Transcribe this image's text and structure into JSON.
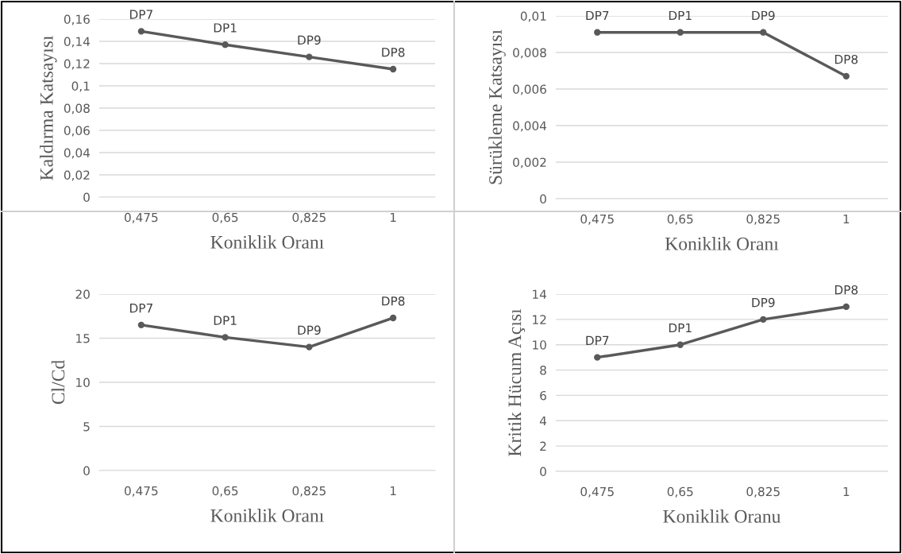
{
  "chart_data": [
    {
      "type": "line",
      "categories": [
        "0,475",
        "0,65",
        "0,825",
        "1"
      ],
      "xlabel": "Koniklik Oranı",
      "ylabel": "Kaldırma Katsayısı",
      "series": [
        {
          "color": "#595959",
          "values": [
            0.149,
            0.137,
            0.126,
            0.115
          ]
        }
      ],
      "ylim": [
        0,
        0.16
      ],
      "yticks": [
        0,
        {
          "value": 0.02,
          "label": "0,02"
        },
        {
          "value": 0.04,
          "label": "0,04"
        },
        {
          "value": 0.06,
          "label": "0,06"
        },
        {
          "value": 0.08,
          "label": "0,08"
        },
        {
          "value": 0.1,
          "label": "0,1"
        },
        {
          "value": 0.12,
          "label": "0,12"
        },
        {
          "value": 0.14,
          "label": "0,14"
        },
        {
          "value": 0.16,
          "label": "0,16"
        }
      ],
      "grid": "y",
      "marker": "circle",
      "line_style": "solid",
      "legend": false,
      "annotations": [
        {
          "text": "DP7",
          "x": "0,475",
          "y": 0.149
        },
        {
          "text": "DP1",
          "x": "0,65",
          "y": 0.137
        },
        {
          "text": "DP9",
          "x": "0,825",
          "y": 0.126
        },
        {
          "text": "DP8",
          "x": "1",
          "y": 0.115
        }
      ]
    },
    {
      "type": "line",
      "categories": [
        "0,475",
        "0,65",
        "0,825",
        "1"
      ],
      "xlabel": "Koniklik Oranı",
      "ylabel": "Sürükleme Katsayısı",
      "series": [
        {
          "color": "#595959",
          "values": [
            0.0091,
            0.0091,
            0.0091,
            0.0067
          ]
        }
      ],
      "ylim": [
        0,
        0.01
      ],
      "yticks": [
        0,
        {
          "value": 0.002,
          "label": "0,002"
        },
        {
          "value": 0.004,
          "label": "0,004"
        },
        {
          "value": 0.006,
          "label": "0,006"
        },
        {
          "value": 0.008,
          "label": "0,008"
        },
        {
          "value": 0.01,
          "label": "0,01"
        }
      ],
      "grid": "y",
      "marker": "circle",
      "line_style": "solid",
      "legend": false,
      "annotations": [
        {
          "text": "DP7",
          "x": "0,475",
          "y": 0.0091
        },
        {
          "text": "DP1",
          "x": "0,65",
          "y": 0.0091
        },
        {
          "text": "DP9",
          "x": "0,825",
          "y": 0.0091
        },
        {
          "text": "DP8",
          "x": "1",
          "y": 0.0067
        }
      ]
    },
    {
      "type": "line",
      "categories": [
        "0,475",
        "0,65",
        "0,825",
        "1"
      ],
      "xlabel": "Koniklik Oranı",
      "ylabel": "Cl/Cd",
      "series": [
        {
          "color": "#595959",
          "values": [
            16.5,
            15.1,
            14.0,
            17.3
          ]
        }
      ],
      "ylim": [
        0,
        20
      ],
      "yticks": [
        0,
        5,
        10,
        15,
        20
      ],
      "grid": "y",
      "marker": "circle",
      "line_style": "solid",
      "legend": false,
      "annotations": [
        {
          "text": "DP7",
          "x": "0,475",
          "y": 16.5
        },
        {
          "text": "DP1",
          "x": "0,65",
          "y": 15.1
        },
        {
          "text": "DP9",
          "x": "0,825",
          "y": 14.0
        },
        {
          "text": "DP8",
          "x": "1",
          "y": 17.3
        }
      ]
    },
    {
      "type": "line",
      "categories": [
        "0,475",
        "0,65",
        "0,825",
        "1"
      ],
      "xlabel": "Koniklik Oranu",
      "ylabel": "Kritik Hücum Açısı",
      "series": [
        {
          "color": "#595959",
          "values": [
            9,
            10,
            12,
            13
          ]
        }
      ],
      "ylim": [
        0,
        14
      ],
      "yticks": [
        0,
        2,
        4,
        6,
        8,
        10,
        12,
        14
      ],
      "grid": "y",
      "marker": "circle",
      "line_style": "solid",
      "legend": false,
      "annotations": [
        {
          "text": "DP7",
          "x": "0,475",
          "y": 9
        },
        {
          "text": "DP1",
          "x": "0,65",
          "y": 10
        },
        {
          "text": "DP9",
          "x": "0,825",
          "y": 12
        },
        {
          "text": "DP8",
          "x": "1",
          "y": 13
        }
      ]
    }
  ]
}
